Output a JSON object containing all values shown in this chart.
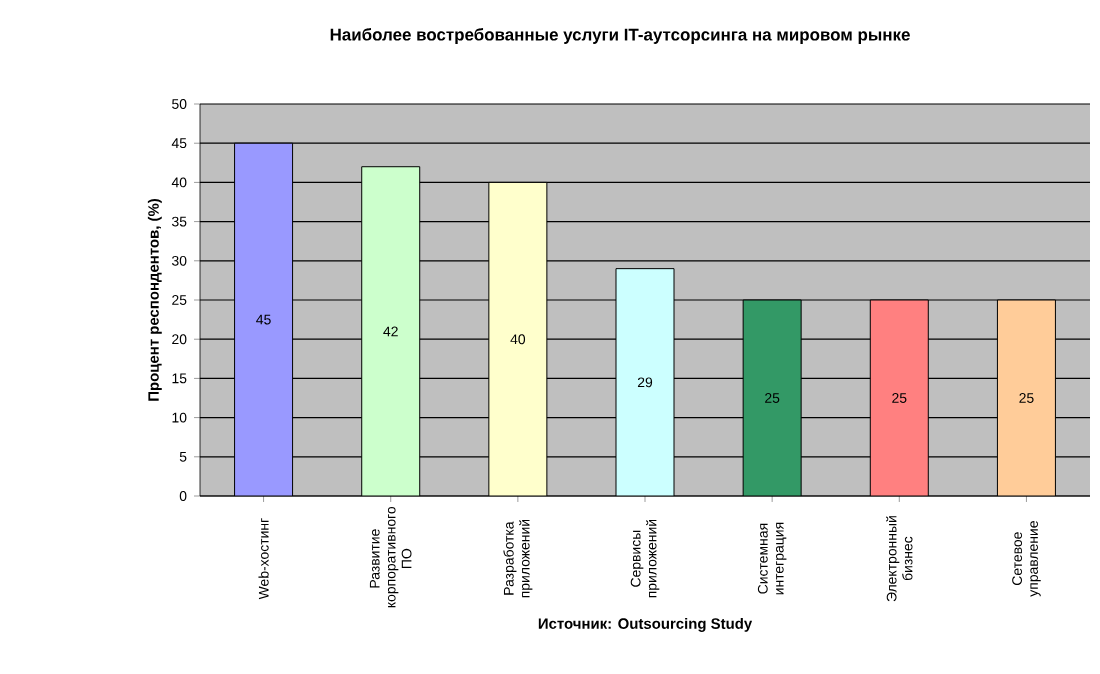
{
  "chart_data": {
    "type": "bar",
    "title": "Наиболее востребованные услуги  IT-аутсорсинга на мировом рынке",
    "xlabel": "Источник: Outsourcing Study",
    "ylabel": "Процент респондентов, (%)",
    "categories": [
      "Web-хостинг",
      "Развитие корпоративного ПО",
      "Разработка приложений",
      "Сервисы приложений",
      "Системная интеграция",
      "Электронный бизнес",
      "Сетевое управление"
    ],
    "values": [
      45,
      42,
      40,
      29,
      25,
      25,
      25
    ],
    "colors": [
      "#9999ff",
      "#ccffcc",
      "#ffffcc",
      "#ccffff",
      "#339966",
      "#ff8080",
      "#ffcc99"
    ],
    "ylim": [
      0,
      50
    ],
    "yticks": [
      0,
      5,
      10,
      15,
      20,
      25,
      30,
      35,
      40,
      45,
      50
    ],
    "grid": "y",
    "data_labels": true
  }
}
